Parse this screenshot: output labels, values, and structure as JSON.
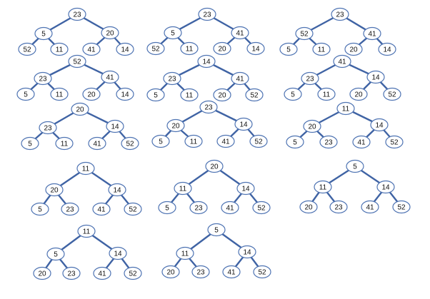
{
  "colors": {
    "edge": "#3f63a4",
    "node_stroke": "#4f74b3",
    "node_fill": "#ffffff",
    "text": "#111111"
  },
  "trees": [
    {
      "values": [
        "23",
        "5",
        "20",
        "52",
        "11",
        "41",
        "14"
      ]
    },
    {
      "values": [
        "23",
        "5",
        "41",
        "52",
        "11",
        "20",
        "14"
      ]
    },
    {
      "values": [
        "23",
        "52",
        "41",
        "5",
        "11",
        "20",
        "14"
      ]
    },
    {
      "values": [
        "52",
        "23",
        "41",
        "5",
        "11",
        "20",
        "14"
      ]
    },
    {
      "values": [
        "14",
        "23",
        "41",
        "5",
        "11",
        "20",
        "52"
      ]
    },
    {
      "values": [
        "41",
        "23",
        "14",
        "5",
        "11",
        "20",
        "52"
      ]
    },
    {
      "values": [
        "20",
        "23",
        "14",
        "5",
        "11",
        "41",
        "52"
      ]
    },
    {
      "values": [
        "23",
        "20",
        "14",
        "5",
        "11",
        "41",
        "52"
      ]
    },
    {
      "values": [
        "11",
        "20",
        "14",
        "5",
        "23",
        "41",
        "52"
      ]
    },
    {
      "values": [
        "11",
        "20",
        "14",
        "5",
        "23",
        "41",
        "52"
      ]
    },
    {
      "values": [
        "20",
        "11",
        "14",
        "5",
        "23",
        "41",
        "52"
      ]
    },
    {
      "values": [
        "5",
        "11",
        "14",
        "20",
        "23",
        "41",
        "52"
      ]
    },
    {
      "values": [
        "11",
        "5",
        "14",
        "20",
        "23",
        "41",
        "52"
      ]
    },
    {
      "values": [
        "5",
        "11",
        "14",
        "20",
        "23",
        "41",
        "52"
      ]
    }
  ]
}
